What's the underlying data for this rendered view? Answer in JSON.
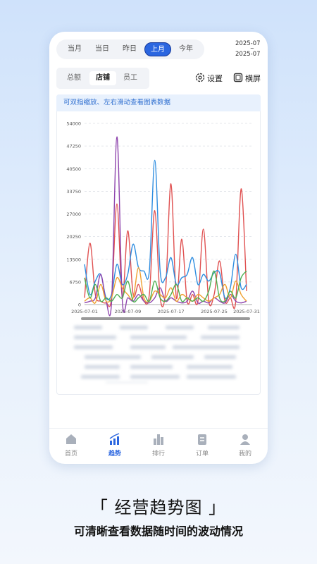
{
  "top_tabs": [
    "当月",
    "当日",
    "昨日",
    "上月",
    "今年"
  ],
  "date_range": {
    "start": "2025-07",
    "separator": "~",
    "end": "2025-07"
  },
  "sub_tabs": [
    "总额",
    "店铺",
    "员工"
  ],
  "tools": [
    "设置",
    "横屏"
  ],
  "hint": "可双指缩放、左右滑动查看图表数据",
  "chart_data": {
    "type": "line",
    "categories": [
      "2025-07-01",
      null,
      null,
      null,
      null,
      null,
      null,
      null,
      "2025-07-09",
      null,
      null,
      null,
      null,
      null,
      null,
      null,
      "2025-07-17",
      null,
      null,
      null,
      null,
      null,
      null,
      null,
      "2025-07-25",
      null,
      null,
      null,
      null,
      null,
      "2025-07-31"
    ],
    "series": [
      {
        "color": "#e05252",
        "values": [
          2000,
          18300,
          3000,
          1000,
          500,
          2000,
          30000,
          2000,
          22000,
          3000,
          6000,
          1000,
          3000,
          28000,
          2000,
          4000,
          36000,
          2000,
          19500,
          1000,
          3000,
          1000,
          22500,
          1000,
          3000,
          13000,
          1000,
          2000,
          1000,
          34500,
          4000
        ]
      },
      {
        "color": "#2d8de0",
        "values": [
          12000,
          3000,
          7000,
          9000,
          2000,
          3000,
          12000,
          6000,
          9000,
          18000,
          11000,
          10000,
          10000,
          43000,
          10000,
          8000,
          14000,
          6000,
          8000,
          9000,
          14000,
          6000,
          9000,
          7000,
          9500,
          9500,
          2000,
          5000,
          15000,
          5000,
          6000
        ]
      },
      {
        "color": "#8e44ad",
        "values": [
          500,
          1000,
          2000,
          9000,
          1000,
          500,
          50000,
          1000,
          2000,
          1000,
          3000,
          1000,
          500,
          2000,
          5000,
          1000,
          2000,
          1000,
          500,
          1000,
          4000,
          500,
          1000,
          500,
          2000,
          1000,
          500,
          3000,
          1000,
          500,
          1000
        ]
      },
      {
        "color": "#f0a030",
        "values": [
          1000,
          2000,
          500,
          6000,
          1000,
          2000,
          8000,
          5000,
          3000,
          2000,
          11000,
          2000,
          1000,
          4000,
          3000,
          2000,
          5000,
          1000,
          3000,
          2000,
          1000,
          3000,
          2000,
          1000,
          2000,
          3000,
          6000,
          2000,
          7000,
          3000,
          1000
        ]
      },
      {
        "color": "#4caf50",
        "values": [
          8000,
          2000,
          6000,
          1000,
          2000,
          1000,
          3000,
          2000,
          7000,
          1000,
          2000,
          3000,
          1000,
          7000,
          2000,
          1000,
          3000,
          6000,
          1000,
          2000,
          1000,
          2000,
          1000,
          4000,
          10000,
          2000,
          1000,
          4000,
          2000,
          8000,
          10000
        ]
      }
    ],
    "ylim": [
      0,
      54000
    ],
    "yticks": [
      0,
      6750,
      13500,
      20250,
      27000,
      33750,
      40500,
      47250,
      54000
    ],
    "grid": true,
    "smooth": true
  },
  "nav": [
    "首页",
    "趋势",
    "排行",
    "订单",
    "我的"
  ],
  "headline": "「 经营趋势图 」",
  "subtitle": "可清晰查看数据随时间的波动情况"
}
